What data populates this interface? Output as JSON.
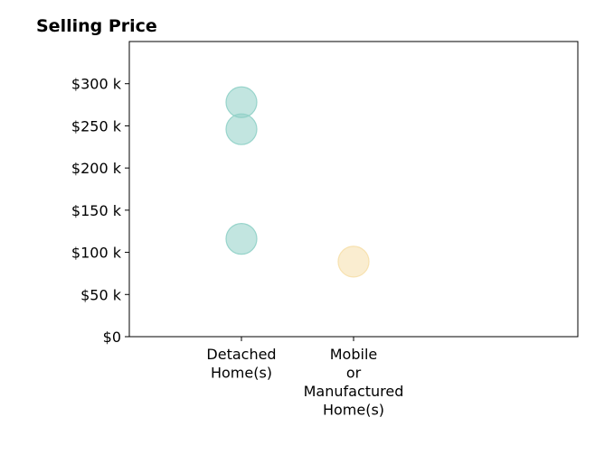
{
  "chart_data": {
    "type": "scatter",
    "title": "Selling Price",
    "xlabel": "",
    "ylabel": "",
    "categories": [
      [
        "Detached",
        "Home(s)"
      ],
      [
        "Mobile",
        "or",
        "Manufactured",
        "Home(s)"
      ]
    ],
    "ylim": [
      0,
      350000
    ],
    "yticks": [
      {
        "value": 0,
        "label": "$0"
      },
      {
        "value": 50000,
        "label": "$50 k"
      },
      {
        "value": 100000,
        "label": "$100 k"
      },
      {
        "value": 150000,
        "label": "$150 k"
      },
      {
        "value": 200000,
        "label": "$200 k"
      },
      {
        "value": 250000,
        "label": "$250 k"
      },
      {
        "value": 300000,
        "label": "$300 k"
      }
    ],
    "grid": false,
    "points": [
      {
        "category": 0,
        "value": 278000,
        "color": "#8fd0c6"
      },
      {
        "category": 0,
        "value": 246000,
        "color": "#8fd0c6"
      },
      {
        "category": 0,
        "value": 116000,
        "color": "#8fd0c6"
      },
      {
        "category": 1,
        "value": 89000,
        "color": "#f6dfaa"
      }
    ]
  }
}
